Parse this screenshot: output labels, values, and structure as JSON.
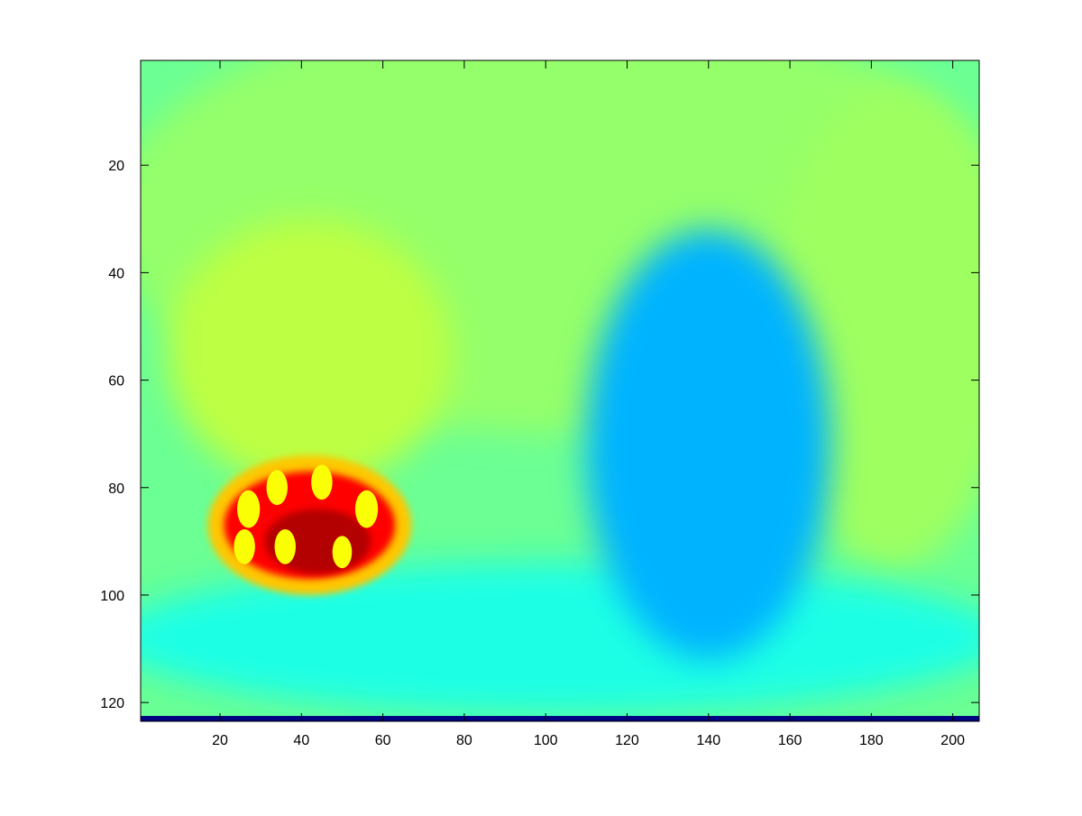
{
  "chart_data": {
    "type": "heatmap",
    "title": "",
    "xlabel": "",
    "ylabel": "",
    "colormap": "jet",
    "xlim": [
      0.5,
      206.5
    ],
    "ylim": [
      0.5,
      123.5
    ],
    "y_direction": "reversed",
    "grid": false,
    "colorbar": false,
    "x_ticks": [
      20,
      40,
      60,
      80,
      100,
      120,
      140,
      160,
      180,
      200
    ],
    "y_ticks": [
      20,
      40,
      60,
      80,
      100,
      120
    ],
    "x_tick_labels": [
      "20",
      "40",
      "60",
      "80",
      "100",
      "120",
      "140",
      "160",
      "180",
      "200"
    ],
    "y_tick_labels": [
      "20",
      "40",
      "60",
      "80",
      "100",
      "120"
    ],
    "image_size": {
      "columns": 206,
      "rows": 123
    },
    "background_level": 0.48,
    "bottom_row_level": 0.0,
    "regions": [
      {
        "name": "upper-background",
        "level": 0.52,
        "cx": 103,
        "cy": 30,
        "rx": 110,
        "ry": 40
      },
      {
        "name": "left-glow",
        "level": 0.56,
        "cx": 42,
        "cy": 55,
        "rx": 35,
        "ry": 25
      },
      {
        "name": "right-glow",
        "level": 0.53,
        "cx": 185,
        "cy": 50,
        "rx": 30,
        "ry": 45
      },
      {
        "name": "lower-band",
        "level": 0.4,
        "cx": 103,
        "cy": 108,
        "rx": 110,
        "ry": 14
      },
      {
        "name": "butterfly",
        "level": 0.3,
        "cx": 140,
        "cy": 72,
        "rx": 30,
        "ry": 40
      },
      {
        "name": "ladybug-rim",
        "level": 0.68,
        "cx": 42,
        "cy": 87,
        "rx": 25,
        "ry": 13
      },
      {
        "name": "ladybug-body",
        "level": 0.87,
        "cx": 42,
        "cy": 87,
        "rx": 21,
        "ry": 10
      },
      {
        "name": "ladybug-core",
        "level": 0.95,
        "cx": 44,
        "cy": 90,
        "rx": 13,
        "ry": 6
      }
    ],
    "spots": [
      {
        "cx": 27,
        "cy": 84,
        "r": 2.8
      },
      {
        "cx": 34,
        "cy": 80,
        "r": 2.6
      },
      {
        "cx": 45,
        "cy": 79,
        "r": 2.6
      },
      {
        "cx": 56,
        "cy": 84,
        "r": 2.8
      },
      {
        "cx": 26,
        "cy": 91,
        "r": 2.6
      },
      {
        "cx": 36,
        "cy": 91,
        "r": 2.6
      },
      {
        "cx": 50,
        "cy": 92,
        "r": 2.4
      }
    ],
    "spot_level": 0.62
  }
}
